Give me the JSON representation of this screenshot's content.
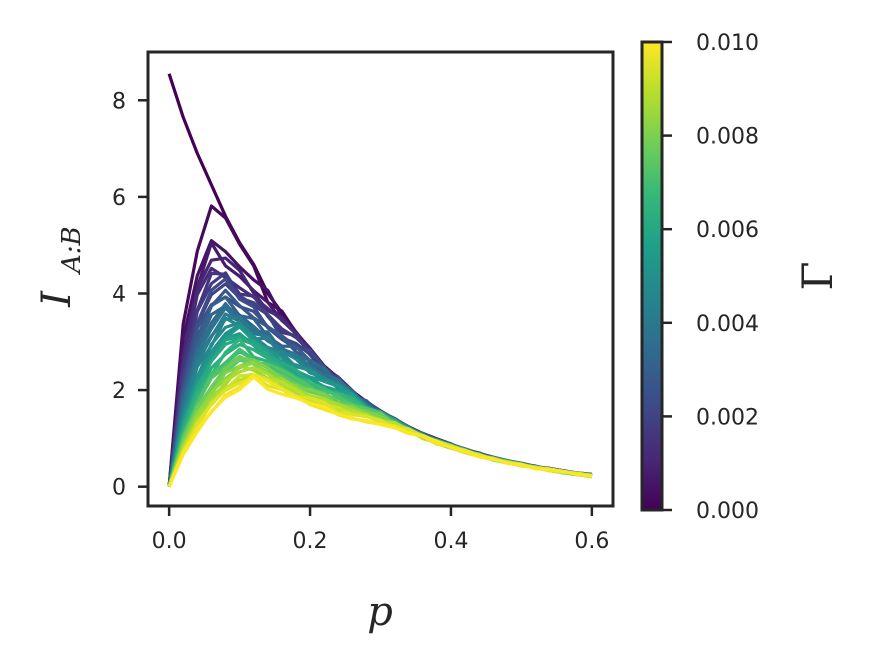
{
  "chart_data": {
    "type": "line",
    "xlabel": "p",
    "ylabel": {
      "main": "I",
      "sub": "A:B"
    },
    "xlim": [
      -0.03,
      0.63
    ],
    "ylim": [
      -0.4,
      9.0
    ],
    "xticks": [
      "0.0",
      "0.2",
      "0.4",
      "0.6"
    ],
    "xtick_values": [
      0.0,
      0.2,
      0.4,
      0.6
    ],
    "yticks": [
      "0",
      "2",
      "4",
      "6",
      "8"
    ],
    "ytick_values": [
      0,
      2,
      4,
      6,
      8
    ],
    "grid": false,
    "x": [
      0.0,
      0.02,
      0.04,
      0.06,
      0.08,
      0.1,
      0.12,
      0.14,
      0.16,
      0.18,
      0.2,
      0.22,
      0.24,
      0.26,
      0.28,
      0.3,
      0.32,
      0.34,
      0.36,
      0.38,
      0.4,
      0.42,
      0.44,
      0.46,
      0.48,
      0.5,
      0.52,
      0.54,
      0.56,
      0.58,
      0.6
    ],
    "series_family": {
      "parameter": "Γ",
      "count": 41,
      "gamma_range": [
        0.0,
        0.01
      ],
      "colormap": "viridis",
      "gamma0_values": [
        8.55,
        7.65,
        6.9,
        6.25,
        5.6,
        5.05,
        4.6,
        4.0,
        3.6,
        3.2,
        2.85,
        2.5,
        2.25,
        1.98,
        1.76,
        1.57,
        1.4,
        1.24,
        1.1,
        0.98,
        0.88,
        0.78,
        0.69,
        0.61,
        0.54,
        0.48,
        0.42,
        0.37,
        0.32,
        0.28,
        0.24
      ],
      "peak_start_gamma_smallest": 5.75,
      "peak_end_gamma_largest": 2.2,
      "peak_location_range": [
        0.06,
        0.12
      ]
    },
    "colorbar": {
      "label": "Γ",
      "ticks": [
        "0.000",
        "0.002",
        "0.004",
        "0.006",
        "0.008",
        "0.010"
      ],
      "tick_values": [
        0.0,
        0.002,
        0.004,
        0.006,
        0.008,
        0.01
      ],
      "range": [
        0.0,
        0.01
      ]
    },
    "colors": {
      "viridis": [
        "#440154",
        "#482878",
        "#3e4989",
        "#31688e",
        "#26828e",
        "#1f9e89",
        "#35b779",
        "#6ece58",
        "#b5de2b",
        "#fde725"
      ],
      "axis": "#262626"
    }
  }
}
